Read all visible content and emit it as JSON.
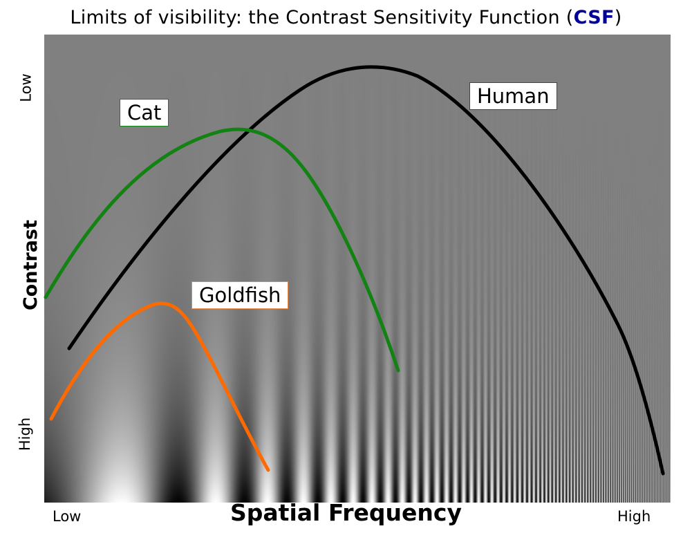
{
  "title": {
    "text": "Limits of visibility: the Contrast Sensitivity Function (",
    "accent": "CSF",
    "suffix": ")"
  },
  "axes": {
    "y_label": "Contrast",
    "y_top": "Low",
    "y_bottom": "High",
    "x_label": "Spatial Frequency",
    "x_left": "Low",
    "x_right": "High"
  },
  "curves": [
    {
      "id": "human",
      "label": "Human",
      "color": "#000000",
      "border": "#444444"
    },
    {
      "id": "cat",
      "label": "Cat",
      "color": "#128212",
      "border": "#128212"
    },
    {
      "id": "goldfish",
      "label": "Goldfish",
      "color": "#ff6a00",
      "border": "#e8884a"
    }
  ],
  "background": {
    "description_color_dark": "#000000",
    "description_color_light": "#ffffff",
    "mid_gray": "#808080"
  }
}
